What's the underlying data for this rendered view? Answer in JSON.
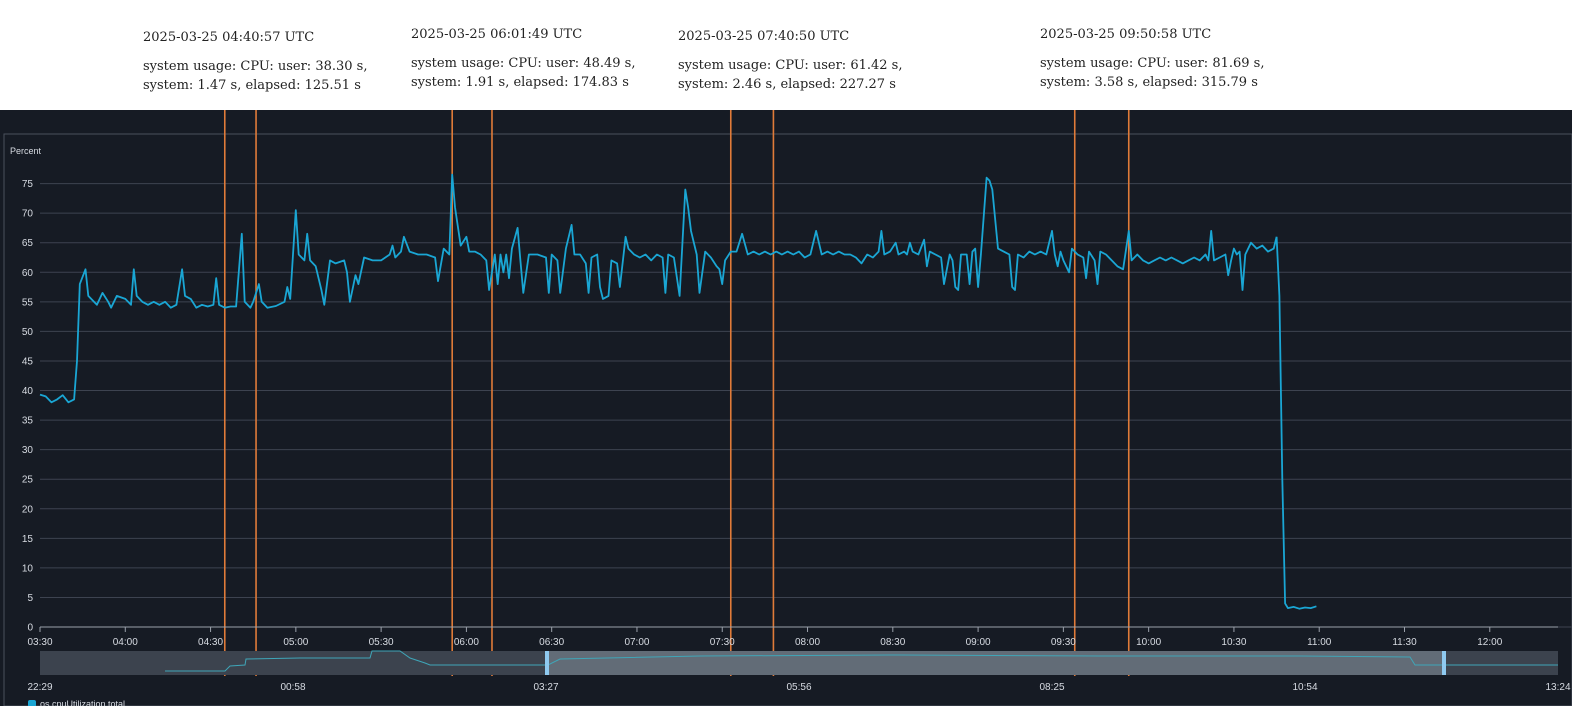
{
  "annotations": [
    {
      "timestamp": "2025-03-25 04:40:57 UTC",
      "usage": "system usage: CPU: user: 38.30 s, system: 1.47 s, elapsed: 125.51 s"
    },
    {
      "timestamp": "2025-03-25 06:01:49 UTC",
      "usage": "system usage: CPU: user: 48.49 s, system: 1.91 s, elapsed: 174.83 s"
    },
    {
      "timestamp": "2025-03-25 07:40:50 UTC",
      "usage": "system usage: CPU: user: 61.42 s, system: 2.46 s, elapsed: 227.27 s"
    },
    {
      "timestamp": "2025-03-25 09:50:58 UTC",
      "usage": "system usage: CPU: user: 81.69 s, system: 3.58 s, elapsed: 315.79 s"
    }
  ],
  "colors": {
    "background": "#161b24",
    "line": "#1aa6d4",
    "marker": "#e07b39",
    "grid": "#3d4350",
    "navigator_bg": "#3c434e",
    "navigator_window": "#6f7986",
    "handle": "#8fcaf0"
  },
  "chart_data": {
    "type": "line",
    "ylabel": "Percent",
    "ylim": [
      0,
      80
    ],
    "yticks": [
      "0",
      "5",
      "10",
      "15",
      "20",
      "25",
      "30",
      "35",
      "40",
      "45",
      "50",
      "55",
      "60",
      "65",
      "70",
      "75"
    ],
    "xtick_labels": [
      "03:30",
      "04:00",
      "04:30",
      "05:00",
      "05:30",
      "06:00",
      "06:30",
      "07:00",
      "07:30",
      "08:00",
      "08:30",
      "09:00",
      "09:30",
      "10:00",
      "10:30",
      "11:00",
      "11:30",
      "12:00"
    ],
    "x_start_minutes": 210,
    "x_end_minutes": 744,
    "marker_minutes": [
      275,
      286,
      355,
      369,
      453,
      468,
      574,
      593
    ],
    "series": [
      {
        "name": "",
        "points": [
          [
            210,
            39.3
          ],
          [
            212,
            39
          ],
          [
            214,
            38
          ],
          [
            216,
            38.5
          ],
          [
            218,
            39.2
          ],
          [
            220,
            38
          ],
          [
            222,
            38.5
          ],
          [
            223,
            45
          ],
          [
            224,
            58
          ],
          [
            226,
            60.5
          ],
          [
            227,
            56
          ],
          [
            230,
            54.5
          ],
          [
            232,
            56.5
          ],
          [
            234,
            55
          ],
          [
            235,
            54
          ],
          [
            237,
            56
          ],
          [
            240,
            55.5
          ],
          [
            241,
            55
          ],
          [
            242,
            54.5
          ],
          [
            243,
            60.5
          ],
          [
            244,
            56
          ],
          [
            246,
            55
          ],
          [
            248,
            54.5
          ],
          [
            250,
            55
          ],
          [
            252,
            54.5
          ],
          [
            254,
            55
          ],
          [
            256,
            54
          ],
          [
            258,
            54.5
          ],
          [
            260,
            60.5
          ],
          [
            261,
            56
          ],
          [
            263,
            55.5
          ],
          [
            265,
            54
          ],
          [
            267,
            54.5
          ],
          [
            269,
            54.2
          ],
          [
            271,
            54.5
          ],
          [
            272,
            59
          ],
          [
            273,
            54.5
          ],
          [
            275,
            54
          ],
          [
            277,
            54.2
          ],
          [
            279,
            54.2
          ],
          [
            281,
            66.5
          ],
          [
            282,
            55
          ],
          [
            284,
            54
          ],
          [
            285,
            55
          ],
          [
            287,
            58
          ],
          [
            288,
            55
          ],
          [
            290,
            54
          ],
          [
            293,
            54.3
          ],
          [
            296,
            55
          ],
          [
            297,
            57.5
          ],
          [
            298,
            55.5
          ],
          [
            300,
            70.5
          ],
          [
            301,
            63
          ],
          [
            303,
            62
          ],
          [
            304,
            66.5
          ],
          [
            305,
            62
          ],
          [
            307,
            61
          ],
          [
            309,
            57
          ],
          [
            310,
            54.5
          ],
          [
            312,
            62
          ],
          [
            314,
            61.5
          ],
          [
            317,
            62
          ],
          [
            318,
            60
          ],
          [
            319,
            55
          ],
          [
            321,
            59.5
          ],
          [
            322,
            58
          ],
          [
            324,
            62.5
          ],
          [
            327,
            62
          ],
          [
            330,
            62
          ],
          [
            333,
            63
          ],
          [
            334,
            64.5
          ],
          [
            335,
            62.5
          ],
          [
            337,
            63.5
          ],
          [
            338,
            66
          ],
          [
            340,
            63.5
          ],
          [
            343,
            63
          ],
          [
            346,
            63
          ],
          [
            349,
            62.5
          ],
          [
            350,
            58.5
          ],
          [
            352,
            64
          ],
          [
            354,
            63
          ],
          [
            355,
            76.5
          ],
          [
            356,
            71
          ],
          [
            358,
            64.5
          ],
          [
            360,
            66
          ],
          [
            361,
            63.5
          ],
          [
            363,
            63.5
          ],
          [
            365,
            63
          ],
          [
            367,
            62
          ],
          [
            368,
            57
          ],
          [
            370,
            63
          ],
          [
            371,
            58
          ],
          [
            372,
            63
          ],
          [
            373,
            60
          ],
          [
            374,
            63
          ],
          [
            375,
            59
          ],
          [
            376,
            64
          ],
          [
            378,
            67.5
          ],
          [
            379,
            62
          ],
          [
            380,
            56.5
          ],
          [
            382,
            63
          ],
          [
            385,
            63
          ],
          [
            388,
            62.5
          ],
          [
            389,
            56.5
          ],
          [
            390,
            63
          ],
          [
            392,
            62
          ],
          [
            393,
            56.5
          ],
          [
            395,
            64
          ],
          [
            397,
            68
          ],
          [
            398,
            63
          ],
          [
            400,
            63
          ],
          [
            402,
            61.5
          ],
          [
            403,
            56.5
          ],
          [
            404,
            62.5
          ],
          [
            406,
            63
          ],
          [
            407,
            57.5
          ],
          [
            408,
            55.5
          ],
          [
            410,
            56
          ],
          [
            411,
            62
          ],
          [
            413,
            61.5
          ],
          [
            414,
            57.5
          ],
          [
            416,
            66
          ],
          [
            417,
            64
          ],
          [
            419,
            63
          ],
          [
            421,
            62.5
          ],
          [
            423,
            63
          ],
          [
            425,
            62
          ],
          [
            427,
            63
          ],
          [
            429,
            62.5
          ],
          [
            430,
            56.5
          ],
          [
            431,
            63
          ],
          [
            433,
            62.5
          ],
          [
            435,
            56
          ],
          [
            437,
            74
          ],
          [
            438,
            71
          ],
          [
            439,
            67
          ],
          [
            441,
            63
          ],
          [
            442,
            56.5
          ],
          [
            444,
            63.5
          ],
          [
            446,
            62.5
          ],
          [
            448,
            61
          ],
          [
            449,
            60.5
          ],
          [
            450,
            58
          ],
          [
            451,
            62
          ],
          [
            453,
            63.5
          ],
          [
            455,
            63.5
          ],
          [
            457,
            66.5
          ],
          [
            459,
            63
          ],
          [
            461,
            63.5
          ],
          [
            463,
            63
          ],
          [
            465,
            63.5
          ],
          [
            467,
            63
          ],
          [
            469,
            63.5
          ],
          [
            471,
            63
          ],
          [
            473,
            63.5
          ],
          [
            475,
            63
          ],
          [
            477,
            63.5
          ],
          [
            479,
            62.5
          ],
          [
            481,
            63
          ],
          [
            483,
            67
          ],
          [
            485,
            63
          ],
          [
            487,
            63.5
          ],
          [
            489,
            63
          ],
          [
            491,
            63.5
          ],
          [
            493,
            63
          ],
          [
            495,
            63
          ],
          [
            497,
            62.5
          ],
          [
            499,
            61.5
          ],
          [
            501,
            63
          ],
          [
            503,
            62.5
          ],
          [
            505,
            63.5
          ],
          [
            506,
            67
          ],
          [
            507,
            63
          ],
          [
            509,
            63.5
          ],
          [
            511,
            65
          ],
          [
            512,
            63
          ],
          [
            514,
            63.5
          ],
          [
            515,
            63
          ],
          [
            516,
            65
          ],
          [
            517,
            63.5
          ],
          [
            519,
            63
          ],
          [
            521,
            65.5
          ],
          [
            522,
            61
          ],
          [
            523,
            63.5
          ],
          [
            525,
            63
          ],
          [
            527,
            62.5
          ],
          [
            528,
            58
          ],
          [
            530,
            63
          ],
          [
            531,
            62
          ],
          [
            532,
            57.5
          ],
          [
            533,
            57
          ],
          [
            534,
            63
          ],
          [
            536,
            63
          ],
          [
            537,
            58
          ],
          [
            538,
            63.5
          ],
          [
            539,
            64
          ],
          [
            540,
            57.5
          ],
          [
            541,
            63
          ],
          [
            543,
            76
          ],
          [
            544,
            75.5
          ],
          [
            545,
            74
          ],
          [
            547,
            64
          ],
          [
            549,
            63.5
          ],
          [
            551,
            63
          ],
          [
            552,
            57.5
          ],
          [
            553,
            57
          ],
          [
            554,
            63
          ],
          [
            556,
            62.5
          ],
          [
            558,
            63.5
          ],
          [
            560,
            63
          ],
          [
            562,
            63.5
          ],
          [
            564,
            63
          ],
          [
            566,
            67
          ],
          [
            567,
            63
          ],
          [
            568,
            61
          ],
          [
            569,
            63.5
          ],
          [
            570,
            62
          ],
          [
            572,
            60
          ],
          [
            573,
            64
          ],
          [
            575,
            63
          ],
          [
            577,
            62.5
          ],
          [
            578,
            59
          ],
          [
            579,
            63.5
          ],
          [
            581,
            62
          ],
          [
            582,
            58
          ],
          [
            583,
            63.5
          ],
          [
            585,
            63
          ],
          [
            587,
            62
          ],
          [
            589,
            61
          ],
          [
            591,
            60.5
          ],
          [
            593,
            67
          ],
          [
            594,
            62
          ],
          [
            596,
            63
          ],
          [
            598,
            62
          ],
          [
            600,
            61.5
          ],
          [
            602,
            62
          ],
          [
            604,
            62.5
          ],
          [
            606,
            62
          ],
          [
            608,
            62.5
          ],
          [
            610,
            62
          ],
          [
            612,
            61.5
          ],
          [
            614,
            62
          ],
          [
            616,
            62.5
          ],
          [
            618,
            62
          ],
          [
            620,
            63
          ],
          [
            621,
            62
          ],
          [
            622,
            67
          ],
          [
            623,
            62
          ],
          [
            625,
            62.5
          ],
          [
            627,
            63
          ],
          [
            628,
            59.5
          ],
          [
            629,
            62
          ],
          [
            630,
            64
          ],
          [
            631,
            63
          ],
          [
            632,
            63.5
          ],
          [
            633,
            57
          ],
          [
            634,
            63
          ],
          [
            636,
            65
          ],
          [
            638,
            64
          ],
          [
            640,
            64.5
          ],
          [
            642,
            63.5
          ],
          [
            644,
            64
          ],
          [
            645,
            66
          ]
        ]
      },
      {
        "name": "",
        "points": [
          [
            645,
            66
          ],
          [
            646,
            56
          ],
          [
            647,
            25
          ],
          [
            648,
            4
          ],
          [
            649,
            3.2
          ],
          [
            651,
            3.4
          ],
          [
            653,
            3.1
          ],
          [
            655,
            3.3
          ],
          [
            657,
            3.2
          ],
          [
            659,
            3.5
          ]
        ]
      }
    ]
  },
  "navigator": {
    "tick_labels": [
      "22:29",
      "00:58",
      "03:27",
      "05:56",
      "08:25",
      "10:54",
      "13:24"
    ]
  },
  "legend": {
    "series_label": "os.cpuUtilization.total"
  }
}
